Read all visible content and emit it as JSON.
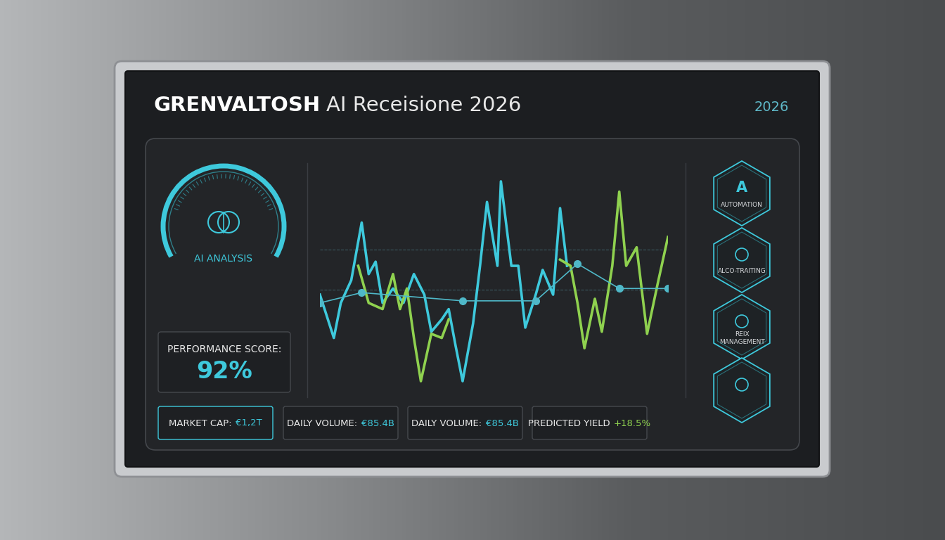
{
  "header": {
    "brand": "GRENVALTOSH",
    "title": "AI Receisione 2026",
    "year": "2026"
  },
  "gauge": {
    "label": "AI ANALYSIS"
  },
  "performance_score": {
    "label": "PERFORMANCE SCORE:",
    "value": "92%"
  },
  "chart_data": {
    "type": "line",
    "xlim": [
      0,
      100
    ],
    "ylim": [
      0,
      100
    ],
    "tick_labels": false,
    "grid": false,
    "series": [
      {
        "color": "#3ec9dc",
        "line_style": "solid",
        "marker": "none",
        "x": [
          0,
          4,
          6,
          9,
          12,
          14,
          16,
          18,
          21,
          24,
          27,
          30,
          32,
          35,
          37,
          39,
          41,
          44,
          46,
          48,
          51,
          52,
          55,
          57,
          59,
          62,
          64,
          67,
          69,
          71
        ],
        "values": [
          44,
          23,
          40,
          51,
          79,
          54,
          60,
          40,
          47,
          40,
          54,
          44,
          26,
          32,
          37,
          19,
          2,
          30,
          58,
          89,
          58,
          99,
          58,
          58,
          28,
          44,
          56,
          44,
          86,
          58
        ]
      },
      {
        "color": "#8fd14f",
        "line_style": "solid",
        "marker": "none",
        "x": [
          11,
          14,
          18,
          21,
          23,
          25,
          27,
          29,
          32,
          35,
          37,
          53,
          69,
          72,
          74,
          76,
          79,
          81,
          84,
          86,
          88,
          91,
          94,
          97,
          100
        ],
        "values": [
          58,
          40,
          37,
          54,
          37,
          47,
          23,
          2,
          25,
          23,
          32,
          null,
          61,
          58,
          40,
          18,
          42,
          26,
          58,
          94,
          58,
          67,
          25,
          49,
          72
        ]
      },
      {
        "color": "#4fb8c8",
        "line_style": "solid",
        "marker": "o",
        "x": [
          0,
          12,
          41,
          62,
          74,
          86,
          100
        ],
        "values": [
          40,
          45,
          41,
          41,
          59,
          47,
          47
        ]
      }
    ]
  },
  "modules": [
    {
      "icon_text": "A",
      "label": "AUTOMATION"
    },
    {
      "label": "ALCO-TRAITING"
    },
    {
      "label": "REIX MANAGEMENT"
    },
    {
      "label": null
    }
  ],
  "stats": [
    {
      "label": "MARKET CAP:",
      "value": "€1,2T"
    },
    {
      "label": "DAILY VOLUME:",
      "value": "€85.4B"
    },
    {
      "label": "DAILY VOLUME:",
      "value": "€85.4B"
    },
    {
      "label": "PREDICTED YIELD",
      "value": "+18.5%"
    }
  ]
}
